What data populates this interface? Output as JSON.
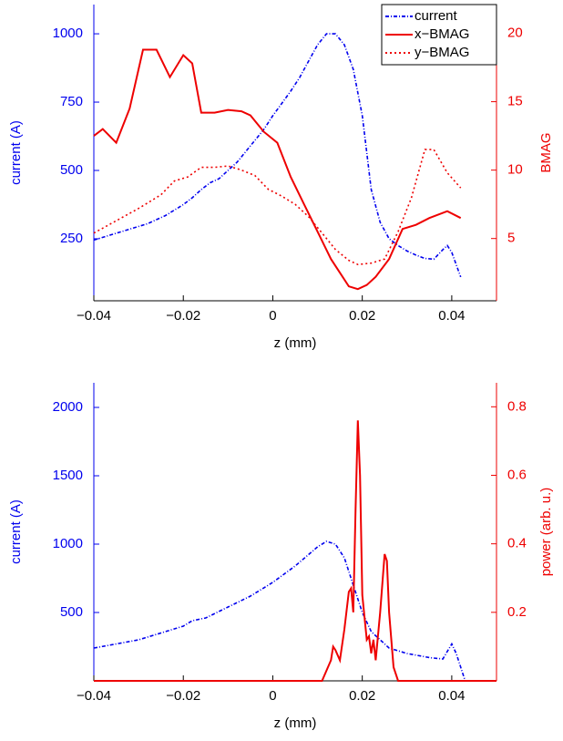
{
  "chart_data": [
    {
      "type": "line",
      "xlabel": "z (mm)",
      "ylabel": "current (A)",
      "y2label": "BMAG",
      "ycolor": "#0000ee",
      "y2color": "#ee0000",
      "xlim": [
        -0.04,
        0.05
      ],
      "xticks": [
        {
          "value": -0.04,
          "label": "−0.04"
        },
        {
          "value": -0.02,
          "label": "−0.02"
        },
        0,
        0.02,
        0.04
      ],
      "ylim": [
        23,
        1107
      ],
      "yticks": [
        250,
        500,
        750,
        1000
      ],
      "y2lim": [
        0.45,
        22.1
      ],
      "y2ticks": [
        5,
        10,
        15,
        20
      ],
      "legend": "upper right",
      "series": [
        {
          "name": "current",
          "color": "#0000ee",
          "style": "dashdot",
          "x": [
            -0.04,
            -0.036,
            -0.032,
            -0.028,
            -0.024,
            -0.02,
            -0.018,
            -0.016,
            -0.014,
            -0.012,
            -0.01,
            -0.008,
            -0.006,
            -0.004,
            -0.002,
            0,
            0.002,
            0.004,
            0.006,
            0.008,
            0.01,
            0.012,
            0.014,
            0.016,
            0.018,
            0.02,
            0.022,
            0.024,
            0.026,
            0.028,
            0.03,
            0.032,
            0.034,
            0.036,
            0.038,
            0.039,
            0.04,
            0.042
          ],
          "values": [
            245,
            265,
            285,
            305,
            335,
            375,
            400,
            430,
            455,
            470,
            500,
            530,
            570,
            610,
            650,
            700,
            745,
            790,
            840,
            900,
            960,
            1000,
            1000,
            960,
            870,
            700,
            430,
            310,
            250,
            225,
            205,
            190,
            178,
            175,
            210,
            225,
            200,
            110
          ]
        },
        {
          "name": "x−BMAG",
          "color": "#ee0000",
          "style": "solid",
          "axis": "y2",
          "x": [
            -0.04,
            -0.038,
            -0.035,
            -0.032,
            -0.029,
            -0.026,
            -0.023,
            -0.02,
            -0.018,
            -0.016,
            -0.013,
            -0.01,
            -0.007,
            -0.005,
            -0.002,
            0.001,
            0.004,
            0.007,
            0.01,
            0.013,
            0.015,
            0.017,
            0.019,
            0.021,
            0.023,
            0.026,
            0.029,
            0.032,
            0.035,
            0.039,
            0.042
          ],
          "values": [
            12.5,
            13,
            12,
            14.5,
            18.8,
            18.8,
            16.8,
            18.4,
            17.8,
            14.2,
            14.2,
            14.4,
            14.3,
            14.0,
            12.8,
            12.0,
            9.5,
            7.5,
            5.5,
            3.5,
            2.5,
            1.5,
            1.3,
            1.6,
            2.2,
            3.5,
            5.7,
            6.0,
            6.5,
            7.0,
            6.5
          ]
        },
        {
          "name": "y−BMAG",
          "color": "#ee0000",
          "style": "dotted",
          "axis": "y2",
          "x": [
            -0.04,
            -0.035,
            -0.03,
            -0.025,
            -0.022,
            -0.019,
            -0.016,
            -0.013,
            -0.01,
            -0.007,
            -0.004,
            -0.001,
            0.002,
            0.005,
            0.008,
            0.011,
            0.014,
            0.017,
            0.019,
            0.022,
            0.025,
            0.028,
            0.031,
            0.034,
            0.036,
            0.039,
            0.042
          ],
          "values": [
            5.4,
            6.3,
            7.2,
            8.2,
            9.2,
            9.5,
            10.2,
            10.2,
            10.3,
            10.0,
            9.6,
            8.6,
            8.1,
            7.5,
            6.6,
            5.4,
            4.2,
            3.4,
            3.1,
            3.2,
            3.5,
            5.5,
            8.0,
            11.5,
            11.5,
            9.8,
            8.7
          ]
        }
      ]
    },
    {
      "type": "line",
      "xlabel": "z (mm)",
      "ylabel": "current (A)",
      "y2label": "power (arb. u.)",
      "ycolor": "#0000ee",
      "y2color": "#ee0000",
      "xlim": [
        -0.04,
        0.05
      ],
      "xticks": [
        {
          "value": -0.04,
          "label": "−0.04"
        },
        {
          "value": -0.02,
          "label": "−0.02"
        },
        0,
        0.02,
        0.04
      ],
      "ylim": [
        0,
        2180
      ],
      "yticks": [
        500,
        1000,
        1500,
        2000
      ],
      "y2lim": [
        0,
        0.87
      ],
      "y2ticks": [
        0.2,
        0.4,
        0.6,
        0.8
      ],
      "series": [
        {
          "color": "#0000ee",
          "style": "dashdot",
          "x": [
            -0.04,
            -0.03,
            -0.02,
            -0.018,
            -0.015,
            -0.01,
            -0.005,
            0,
            0.005,
            0.01,
            0.012,
            0.014,
            0.016,
            0.017,
            0.018,
            0.02,
            0.022,
            0.024,
            0.026,
            0.03,
            0.035,
            0.038,
            0.04,
            0.041,
            0.043
          ],
          "values": [
            240,
            300,
            400,
            440,
            460,
            540,
            620,
            720,
            840,
            980,
            1020,
            1000,
            900,
            800,
            700,
            500,
            360,
            300,
            240,
            200,
            170,
            160,
            270,
            200,
            0
          ]
        },
        {
          "color": "#ee0000",
          "style": "solid",
          "axis": "y2",
          "x": [
            -0.04,
            0.011,
            0.013,
            0.0135,
            0.014,
            0.015,
            0.016,
            0.017,
            0.0175,
            0.018,
            0.0185,
            0.019,
            0.0195,
            0.02,
            0.021,
            0.0215,
            0.022,
            0.0225,
            0.023,
            0.024,
            0.025,
            0.0255,
            0.026,
            0.027,
            0.028,
            0.05
          ],
          "values": [
            0,
            0,
            0.06,
            0.1,
            0.09,
            0.06,
            0.15,
            0.26,
            0.27,
            0.2,
            0.5,
            0.76,
            0.6,
            0.25,
            0.12,
            0.13,
            0.08,
            0.12,
            0.06,
            0.2,
            0.37,
            0.35,
            0.2,
            0.04,
            0,
            0
          ]
        }
      ]
    }
  ]
}
